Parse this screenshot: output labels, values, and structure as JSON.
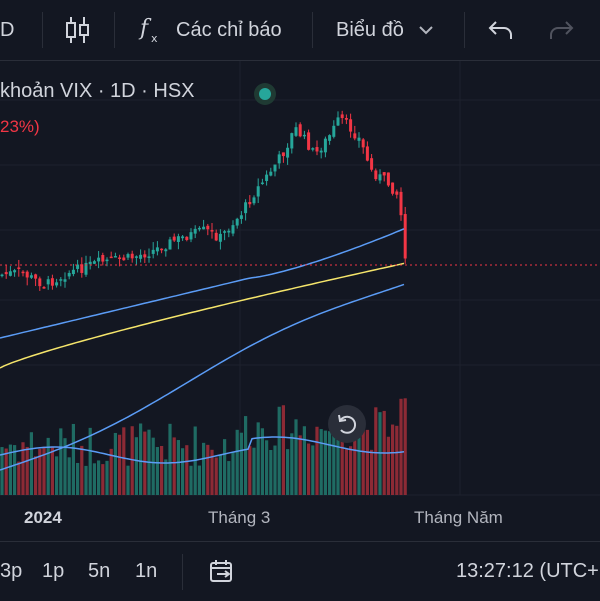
{
  "toolbar": {
    "interval_label": "D",
    "indicators_label": "Các chỉ báo",
    "chart_type_label": "Biểu đồ"
  },
  "legend": {
    "title": "khoản VIX · 1D · HSX",
    "change": "23%)"
  },
  "xaxis": {
    "label_2024": "2024",
    "label_march": "Tháng 3",
    "label_may": "Tháng Năm"
  },
  "bottombar": {
    "range_3p": "3p",
    "range_1p": "1p",
    "range_5n": "5n",
    "range_1n": "1n",
    "clock": "13:27:12 (UTC+"
  },
  "colors": {
    "up": "#26a69a",
    "down": "#f23645",
    "ma_fast": "#5b9cf6",
    "ma_mid": "#f5e56b",
    "ma_slow": "#5b9cf6",
    "background": "#131722"
  },
  "icons": {
    "candle": "candlestick-icon",
    "indicators": "fx-icon",
    "undo": "undo-icon",
    "redo": "redo-icon",
    "reset": "reset-chart-icon",
    "date_range": "calendar-range-icon"
  }
}
